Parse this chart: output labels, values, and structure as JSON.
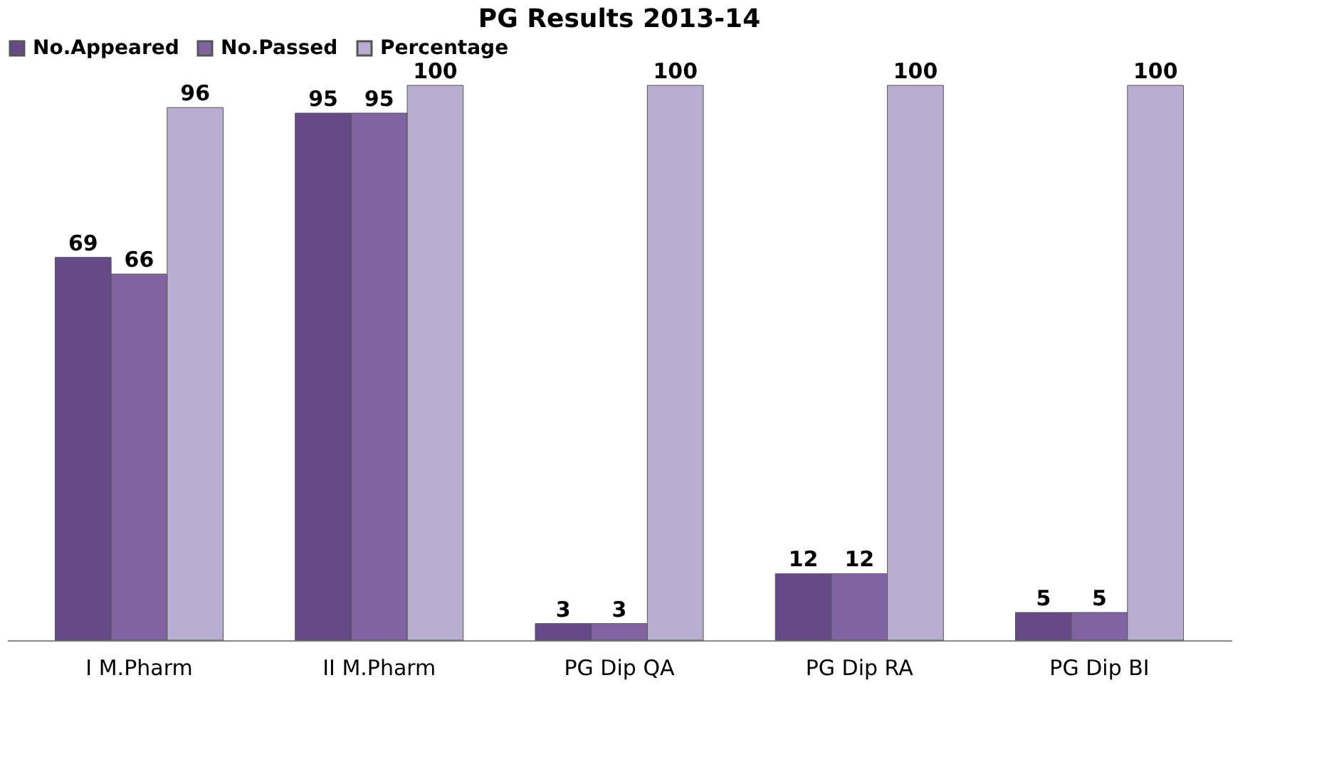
{
  "chart_data": {
    "type": "bar",
    "title": "PG Results 2013-14",
    "categories": [
      "I M.Pharm",
      "II M.Pharm",
      "PG Dip QA",
      "PG Dip RA",
      "PG Dip BI"
    ],
    "series": [
      {
        "name": "No.Appeared",
        "color": "#654a86",
        "values": [
          69,
          95,
          3,
          12,
          5
        ]
      },
      {
        "name": "No.Passed",
        "color": "#8064a2",
        "values": [
          66,
          95,
          3,
          12,
          5
        ]
      },
      {
        "name": "Percentage",
        "color": "#b8aecf",
        "values": [
          96,
          100,
          100,
          100,
          100
        ]
      }
    ],
    "data_labels": true,
    "legend": "top",
    "grid": false
  }
}
